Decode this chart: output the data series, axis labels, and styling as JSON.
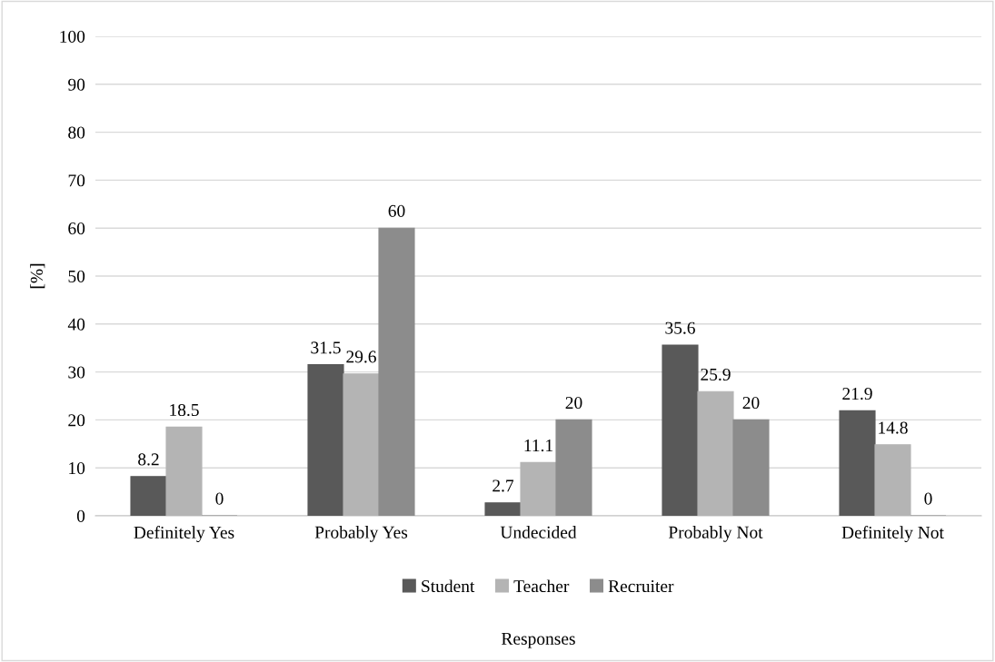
{
  "chart_data": {
    "type": "bar",
    "annotations": [
      "Responses"
    ],
    "ylabel": "[%]",
    "categories": [
      "Definitely Yes",
      "Probably Yes",
      "Undecided",
      "Probably Not",
      "Definitely Not"
    ],
    "series": [
      {
        "name": "Student",
        "color": "#595959",
        "values": [
          8.2,
          31.5,
          2.7,
          35.6,
          21.9
        ]
      },
      {
        "name": "Teacher",
        "color": "#b4b4b4",
        "values": [
          18.5,
          29.6,
          11.1,
          25.9,
          14.8
        ]
      },
      {
        "name": "Recruiter",
        "color": "#8c8c8c",
        "values": [
          0,
          60,
          20,
          20,
          0
        ]
      }
    ],
    "ylim": [
      0,
      100
    ],
    "yticks": [
      0,
      10,
      20,
      30,
      40,
      50,
      60,
      70,
      80,
      90,
      100
    ],
    "grid": "y",
    "legend": "bottom",
    "data_labels": true
  }
}
